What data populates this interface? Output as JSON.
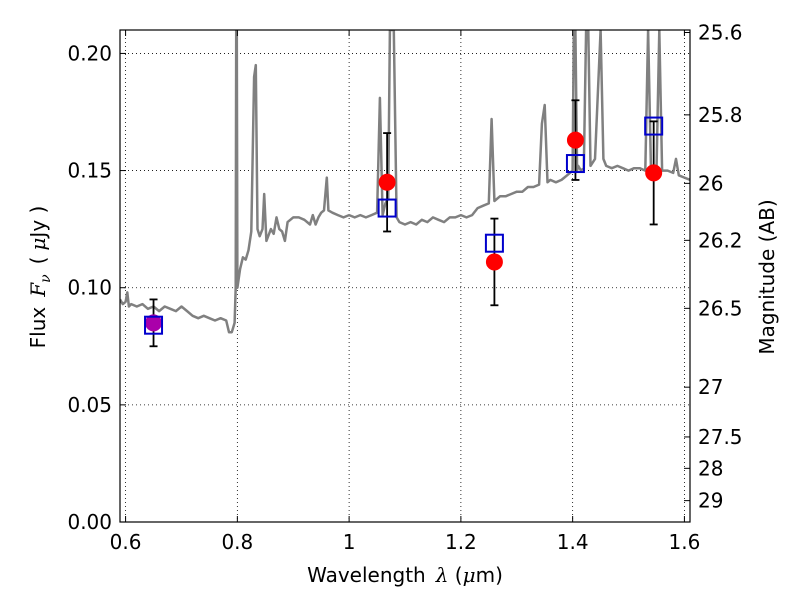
{
  "chart_data": {
    "type": "scatter",
    "xlabel": "Wavelength",
    "xlabel_symbol": "λ",
    "xlabel_unit_open": " (",
    "xlabel_unit_mu": "μ",
    "xlabel_unit_rest": "m)",
    "ylabel": "Flux",
    "ylabel_symbol": "F",
    "ylabel_symbol_sub": "ν",
    "ylabel_unit_open": "(",
    "ylabel_unit_mu": "μ",
    "ylabel_unit_rest": "Jy )",
    "y2label": "Magnitude (AB)",
    "xlim": [
      0.59,
      1.61
    ],
    "ylim": [
      0.0,
      0.21
    ],
    "grid": true,
    "grid_style": "dotted",
    "x_ticks": [
      {
        "value": 0.6,
        "label": "0.6"
      },
      {
        "value": 0.8,
        "label": "0.8"
      },
      {
        "value": 1.0,
        "label": "1"
      },
      {
        "value": 1.2,
        "label": "1.2"
      },
      {
        "value": 1.4,
        "label": "1.4"
      },
      {
        "value": 1.6,
        "label": "1.6"
      }
    ],
    "y_ticks": [
      {
        "value": 0.0,
        "label": "0.00"
      },
      {
        "value": 0.05,
        "label": "0.05"
      },
      {
        "value": 0.1,
        "label": "0.10"
      },
      {
        "value": 0.15,
        "label": "0.15"
      },
      {
        "value": 0.2,
        "label": "0.20"
      }
    ],
    "y2_ticks": [
      {
        "mag": 25.6,
        "label": "25.6"
      },
      {
        "mag": 25.8,
        "label": "25.8"
      },
      {
        "mag": 26.0,
        "label": "26"
      },
      {
        "mag": 26.2,
        "label": "26.2"
      },
      {
        "mag": 26.5,
        "label": "26.5"
      },
      {
        "mag": 27.0,
        "label": "27"
      },
      {
        "mag": 27.5,
        "label": "27.5"
      },
      {
        "mag": 28.0,
        "label": "28"
      },
      {
        "mag": 29.0,
        "label": "29"
      }
    ],
    "model_spectrum": {
      "color": "#808080",
      "points": [
        [
          0.59,
          0.095
        ],
        [
          0.595,
          0.093
        ],
        [
          0.6,
          0.094
        ],
        [
          0.603,
          0.098
        ],
        [
          0.606,
          0.092
        ],
        [
          0.61,
          0.093
        ],
        [
          0.62,
          0.092
        ],
        [
          0.63,
          0.093
        ],
        [
          0.64,
          0.091
        ],
        [
          0.65,
          0.092
        ],
        [
          0.66,
          0.09
        ],
        [
          0.67,
          0.092
        ],
        [
          0.68,
          0.091
        ],
        [
          0.69,
          0.09
        ],
        [
          0.7,
          0.092
        ],
        [
          0.71,
          0.09
        ],
        [
          0.72,
          0.088
        ],
        [
          0.73,
          0.087
        ],
        [
          0.74,
          0.088
        ],
        [
          0.75,
          0.087
        ],
        [
          0.76,
          0.086
        ],
        [
          0.77,
          0.087
        ],
        [
          0.78,
          0.086
        ],
        [
          0.785,
          0.081
        ],
        [
          0.79,
          0.081
        ],
        [
          0.795,
          0.085
        ],
        [
          0.797,
          0.1
        ],
        [
          0.798,
          0.21
        ],
        [
          0.799,
          0.21
        ],
        [
          0.8,
          0.1
        ],
        [
          0.805,
          0.108
        ],
        [
          0.81,
          0.113
        ],
        [
          0.815,
          0.112
        ],
        [
          0.82,
          0.116
        ],
        [
          0.825,
          0.124
        ],
        [
          0.83,
          0.19
        ],
        [
          0.833,
          0.195
        ],
        [
          0.836,
          0.125
        ],
        [
          0.84,
          0.122
        ],
        [
          0.845,
          0.125
        ],
        [
          0.848,
          0.14
        ],
        [
          0.852,
          0.12
        ],
        [
          0.86,
          0.125
        ],
        [
          0.865,
          0.123
        ],
        [
          0.87,
          0.13
        ],
        [
          0.875,
          0.125
        ],
        [
          0.88,
          0.124
        ],
        [
          0.885,
          0.12
        ],
        [
          0.89,
          0.128
        ],
        [
          0.9,
          0.13
        ],
        [
          0.91,
          0.13
        ],
        [
          0.92,
          0.129
        ],
        [
          0.93,
          0.127
        ],
        [
          0.935,
          0.131
        ],
        [
          0.94,
          0.127
        ],
        [
          0.945,
          0.13
        ],
        [
          0.95,
          0.132
        ],
        [
          0.955,
          0.133
        ],
        [
          0.96,
          0.147
        ],
        [
          0.963,
          0.133
        ],
        [
          0.97,
          0.132
        ],
        [
          0.98,
          0.131
        ],
        [
          0.99,
          0.13
        ],
        [
          1.0,
          0.131
        ],
        [
          1.01,
          0.13
        ],
        [
          1.02,
          0.131
        ],
        [
          1.03,
          0.13
        ],
        [
          1.04,
          0.131
        ],
        [
          1.05,
          0.132
        ],
        [
          1.055,
          0.181
        ],
        [
          1.06,
          0.131
        ],
        [
          1.065,
          0.136
        ],
        [
          1.07,
          0.138
        ],
        [
          1.073,
          0.21
        ],
        [
          1.08,
          0.21
        ],
        [
          1.085,
          0.13
        ],
        [
          1.09,
          0.128
        ],
        [
          1.1,
          0.127
        ],
        [
          1.11,
          0.128
        ],
        [
          1.12,
          0.127
        ],
        [
          1.13,
          0.129
        ],
        [
          1.14,
          0.128
        ],
        [
          1.15,
          0.13
        ],
        [
          1.16,
          0.129
        ],
        [
          1.17,
          0.128
        ],
        [
          1.18,
          0.13
        ],
        [
          1.19,
          0.13
        ],
        [
          1.2,
          0.131
        ],
        [
          1.21,
          0.13
        ],
        [
          1.22,
          0.131
        ],
        [
          1.23,
          0.134
        ],
        [
          1.24,
          0.135
        ],
        [
          1.25,
          0.136
        ],
        [
          1.255,
          0.172
        ],
        [
          1.26,
          0.137
        ],
        [
          1.27,
          0.139
        ],
        [
          1.28,
          0.139
        ],
        [
          1.29,
          0.14
        ],
        [
          1.3,
          0.141
        ],
        [
          1.31,
          0.141
        ],
        [
          1.32,
          0.143
        ],
        [
          1.33,
          0.143
        ],
        [
          1.34,
          0.144
        ],
        [
          1.345,
          0.17
        ],
        [
          1.35,
          0.178
        ],
        [
          1.355,
          0.145
        ],
        [
          1.36,
          0.146
        ],
        [
          1.37,
          0.145
        ],
        [
          1.38,
          0.146
        ],
        [
          1.385,
          0.147
        ],
        [
          1.39,
          0.148
        ],
        [
          1.395,
          0.149
        ],
        [
          1.4,
          0.15
        ],
        [
          1.402,
          0.21
        ],
        [
          1.405,
          0.21
        ],
        [
          1.408,
          0.15
        ],
        [
          1.41,
          0.152
        ],
        [
          1.415,
          0.15
        ],
        [
          1.42,
          0.151
        ],
        [
          1.424,
          0.21
        ],
        [
          1.428,
          0.21
        ],
        [
          1.432,
          0.152
        ],
        [
          1.44,
          0.155
        ],
        [
          1.45,
          0.21
        ],
        [
          1.455,
          0.155
        ],
        [
          1.46,
          0.152
        ],
        [
          1.47,
          0.151
        ],
        [
          1.48,
          0.152
        ],
        [
          1.49,
          0.151
        ],
        [
          1.5,
          0.15
        ],
        [
          1.51,
          0.151
        ],
        [
          1.52,
          0.151
        ],
        [
          1.53,
          0.15
        ],
        [
          1.535,
          0.21
        ],
        [
          1.54,
          0.152
        ],
        [
          1.545,
          0.151
        ],
        [
          1.55,
          0.15
        ],
        [
          1.555,
          0.21
        ],
        [
          1.56,
          0.15
        ],
        [
          1.57,
          0.15
        ],
        [
          1.58,
          0.149
        ],
        [
          1.585,
          0.155
        ],
        [
          1.59,
          0.148
        ],
        [
          1.6,
          0.147
        ],
        [
          1.61,
          0.146
        ]
      ]
    },
    "photometry": [
      {
        "x": 0.65,
        "y": 0.085,
        "yerr": 0.01,
        "color": "#aa00aa"
      },
      {
        "x": 1.068,
        "y": 0.145,
        "yerr": 0.021,
        "color": "#ff0000"
      },
      {
        "x": 1.26,
        "y": 0.111,
        "yerr": 0.0185,
        "color": "#ff0000"
      },
      {
        "x": 1.405,
        "y": 0.163,
        "yerr": 0.017,
        "color": "#ff0000"
      },
      {
        "x": 1.545,
        "y": 0.149,
        "yerr": 0.022,
        "color": "#ff0000"
      }
    ],
    "model_photometry": {
      "color": "#0000cc",
      "points": [
        {
          "x": 0.65,
          "y": 0.084
        },
        {
          "x": 1.068,
          "y": 0.134
        },
        {
          "x": 1.26,
          "y": 0.119
        },
        {
          "x": 1.405,
          "y": 0.153
        },
        {
          "x": 1.545,
          "y": 0.169
        }
      ]
    },
    "errorbar_color": "#000000"
  }
}
